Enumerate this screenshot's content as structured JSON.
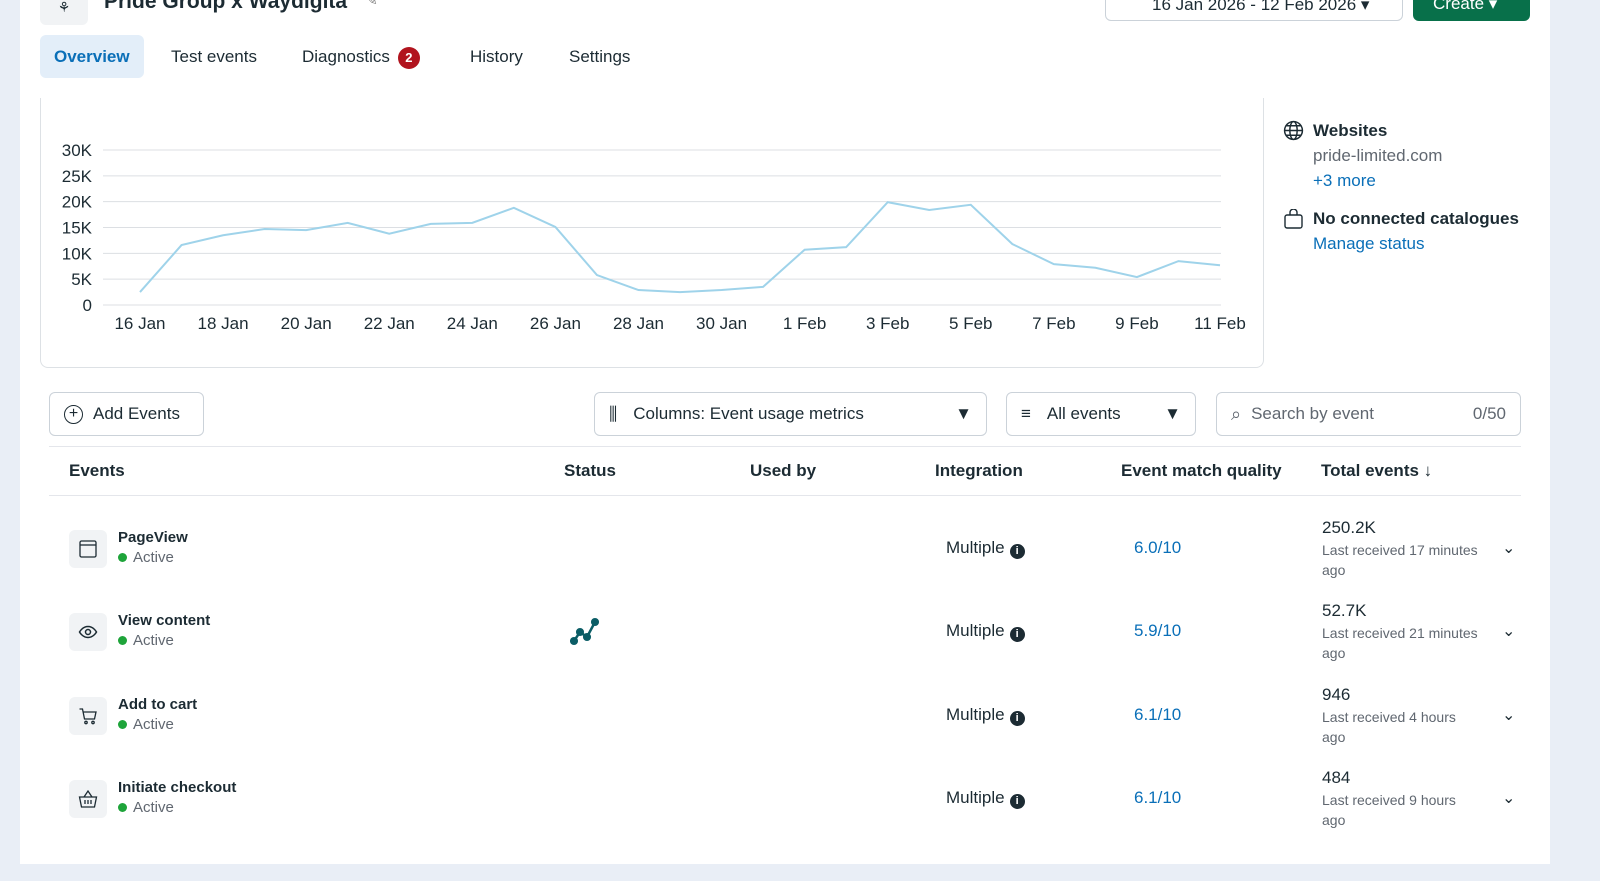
{
  "header": {
    "title": "Pride Group x Waydigita",
    "date_range": "16 Jan 2026 - 12 Feb 2026",
    "create_label": "Create"
  },
  "tabs": [
    {
      "label": "Overview",
      "active": true
    },
    {
      "label": "Test events"
    },
    {
      "label": "Diagnostics",
      "badge": "2"
    },
    {
      "label": "History"
    },
    {
      "label": "Settings"
    }
  ],
  "side": {
    "websites_title": "Websites",
    "website": "pride-limited.com",
    "more": "+3 more",
    "catalogue_title": "No connected catalogues",
    "manage": "Manage status"
  },
  "chart_data": {
    "type": "line",
    "x": [
      "16 Jan",
      "17 Jan",
      "18 Jan",
      "19 Jan",
      "20 Jan",
      "21 Jan",
      "22 Jan",
      "23 Jan",
      "24 Jan",
      "25 Jan",
      "26 Jan",
      "27 Jan",
      "28 Jan",
      "29 Jan",
      "30 Jan",
      "31 Jan",
      "1 Feb",
      "2 Feb",
      "3 Feb",
      "4 Feb",
      "5 Feb",
      "6 Feb",
      "7 Feb",
      "8 Feb",
      "9 Feb",
      "10 Feb",
      "11 Feb"
    ],
    "values": [
      2500,
      11600,
      13500,
      14700,
      14500,
      15900,
      13800,
      15700,
      15900,
      18800,
      15100,
      5800,
      2900,
      2500,
      2900,
      3500,
      10700,
      11200,
      19900,
      18400,
      19400,
      11800,
      7900,
      7200,
      5400,
      8500,
      7700
    ],
    "ylim": [
      0,
      30000
    ],
    "y_ticks": [
      "0",
      "5K",
      "10K",
      "15K",
      "20K",
      "25K",
      "30K"
    ],
    "x_ticks": [
      "16 Jan",
      "18 Jan",
      "20 Jan",
      "22 Jan",
      "24 Jan",
      "26 Jan",
      "28 Jan",
      "30 Jan",
      "1 Feb",
      "3 Feb",
      "5 Feb",
      "7 Feb",
      "9 Feb",
      "11 Feb"
    ],
    "grid": true,
    "color": "#9fd3ea"
  },
  "toolbar": {
    "add_events": "Add Events",
    "columns": "Columns: Event usage metrics",
    "filter": "All events",
    "search_placeholder": "Search by event",
    "search_count": "0/50"
  },
  "table": {
    "headers": {
      "events": "Events",
      "status": "Status",
      "used_by": "Used by",
      "integration": "Integration",
      "emq": "Event match quality",
      "total": "Total events"
    },
    "rows": [
      {
        "name": "PageView",
        "status": "Active",
        "integration": "Multiple",
        "emq": "6.0/10",
        "total": "250.2K",
        "last": "Last received 17 minutes ago",
        "icon": "browser-window-icon"
      },
      {
        "name": "View content",
        "status": "Active",
        "integration": "Multiple",
        "emq": "5.9/10",
        "total": "52.7K",
        "last": "Last received 21 minutes ago",
        "icon": "eye-icon",
        "used_by_icon": "funnel-path-icon"
      },
      {
        "name": "Add to cart",
        "status": "Active",
        "integration": "Multiple",
        "emq": "6.1/10",
        "total": "946",
        "last": "Last received 4 hours ago",
        "icon": "cart-icon"
      },
      {
        "name": "Initiate checkout",
        "status": "Active",
        "integration": "Multiple",
        "emq": "6.1/10",
        "total": "484",
        "last": "Last received 9 hours ago",
        "icon": "basket-icon"
      }
    ]
  }
}
